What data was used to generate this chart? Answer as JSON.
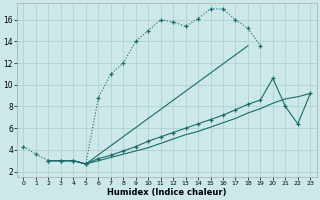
{
  "xlabel": "Humidex (Indice chaleur)",
  "bg_color": "#cce8e8",
  "grid_color": "#aacece",
  "line_color": "#1a6b6b",
  "xlim": [
    -0.5,
    23.5
  ],
  "ylim": [
    1.5,
    17.5
  ],
  "yticks": [
    2,
    4,
    6,
    8,
    10,
    12,
    14,
    16
  ],
  "xticks": [
    0,
    1,
    2,
    3,
    4,
    5,
    6,
    7,
    8,
    9,
    10,
    11,
    12,
    13,
    14,
    15,
    16,
    17,
    18,
    19,
    20,
    21,
    22,
    23
  ],
  "line1_x": [
    0,
    1,
    2,
    3,
    4,
    5,
    6,
    7,
    8,
    9,
    10,
    11,
    12,
    13,
    14,
    15,
    16,
    17,
    18,
    19
  ],
  "line1_y": [
    4.3,
    3.6,
    3.0,
    3.0,
    3.0,
    2.7,
    8.8,
    11.0,
    12.0,
    14.0,
    15.0,
    16.0,
    15.8,
    15.4,
    16.1,
    17.0,
    17.0,
    16.0,
    15.2,
    13.6
  ],
  "line2_x": [
    2,
    3,
    4,
    5,
    18
  ],
  "line2_y": [
    3.0,
    3.0,
    3.0,
    2.7,
    13.6
  ],
  "line3_x": [
    2,
    3,
    4,
    5,
    6,
    7,
    8,
    9,
    10,
    11,
    12,
    13,
    14,
    15,
    16,
    17,
    18,
    19,
    20,
    21,
    22,
    23
  ],
  "line3_y": [
    3.0,
    3.0,
    3.0,
    2.7,
    3.2,
    3.5,
    3.9,
    4.3,
    4.8,
    5.2,
    5.6,
    6.0,
    6.4,
    6.8,
    7.2,
    7.7,
    8.2,
    8.6,
    10.6,
    8.0,
    6.4,
    9.2
  ],
  "line4_x": [
    2,
    3,
    4,
    5,
    6,
    7,
    8,
    9,
    10,
    11,
    12,
    13,
    14,
    15,
    16,
    17,
    18,
    19,
    20,
    21,
    22,
    23
  ],
  "line4_y": [
    3.0,
    3.0,
    3.0,
    2.7,
    3.0,
    3.3,
    3.6,
    3.9,
    4.2,
    4.6,
    5.0,
    5.4,
    5.7,
    6.1,
    6.5,
    6.9,
    7.4,
    7.8,
    8.3,
    8.7,
    8.9,
    9.2
  ]
}
